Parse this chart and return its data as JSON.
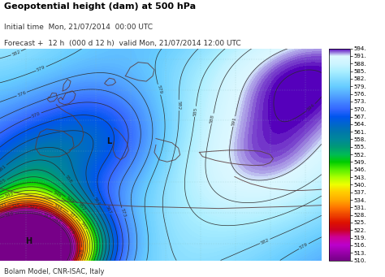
{
  "title_line1": "Geopotential height (dam) at 500 hPa",
  "title_line2": "Initial time  Mon, 21/07/2014  00:00 UTC",
  "title_line3": "Forecast +  12 h  (000 d 12 h)  valid Mon, 21/07/2014 12:00 UTC",
  "footer": "Bolam Model, CNR-ISAC, Italy",
  "colorbar_values": [
    510,
    513,
    516,
    519,
    522,
    525,
    528,
    531,
    534,
    537,
    540,
    543,
    546,
    549,
    552,
    555,
    558,
    561,
    564,
    567,
    570,
    573,
    576,
    579,
    582,
    585,
    588,
    591,
    594
  ],
  "colorbar_colors": [
    "#7700aa",
    "#8800bb",
    "#9900cc",
    "#aa00dd",
    "#cc0088",
    "#dd0000",
    "#ee2200",
    "#ff5500",
    "#ff8800",
    "#ffaa00",
    "#ffcc00",
    "#ffee00",
    "#ddff00",
    "#aaff00",
    "#77ff00",
    "#33dd00",
    "#00cc00",
    "#00bb44",
    "#009988",
    "#008899",
    "#0077bb",
    "#0066dd",
    "#0055ee",
    "#0044ff",
    "#0099ff",
    "#00bbff",
    "#00ddff",
    "#aaeeff",
    "#6633aa"
  ],
  "contour_color": "#2a2a2a",
  "title_fontsize": 7.0,
  "footer_fontsize": 6.0,
  "vmin": 510,
  "vmax": 594
}
